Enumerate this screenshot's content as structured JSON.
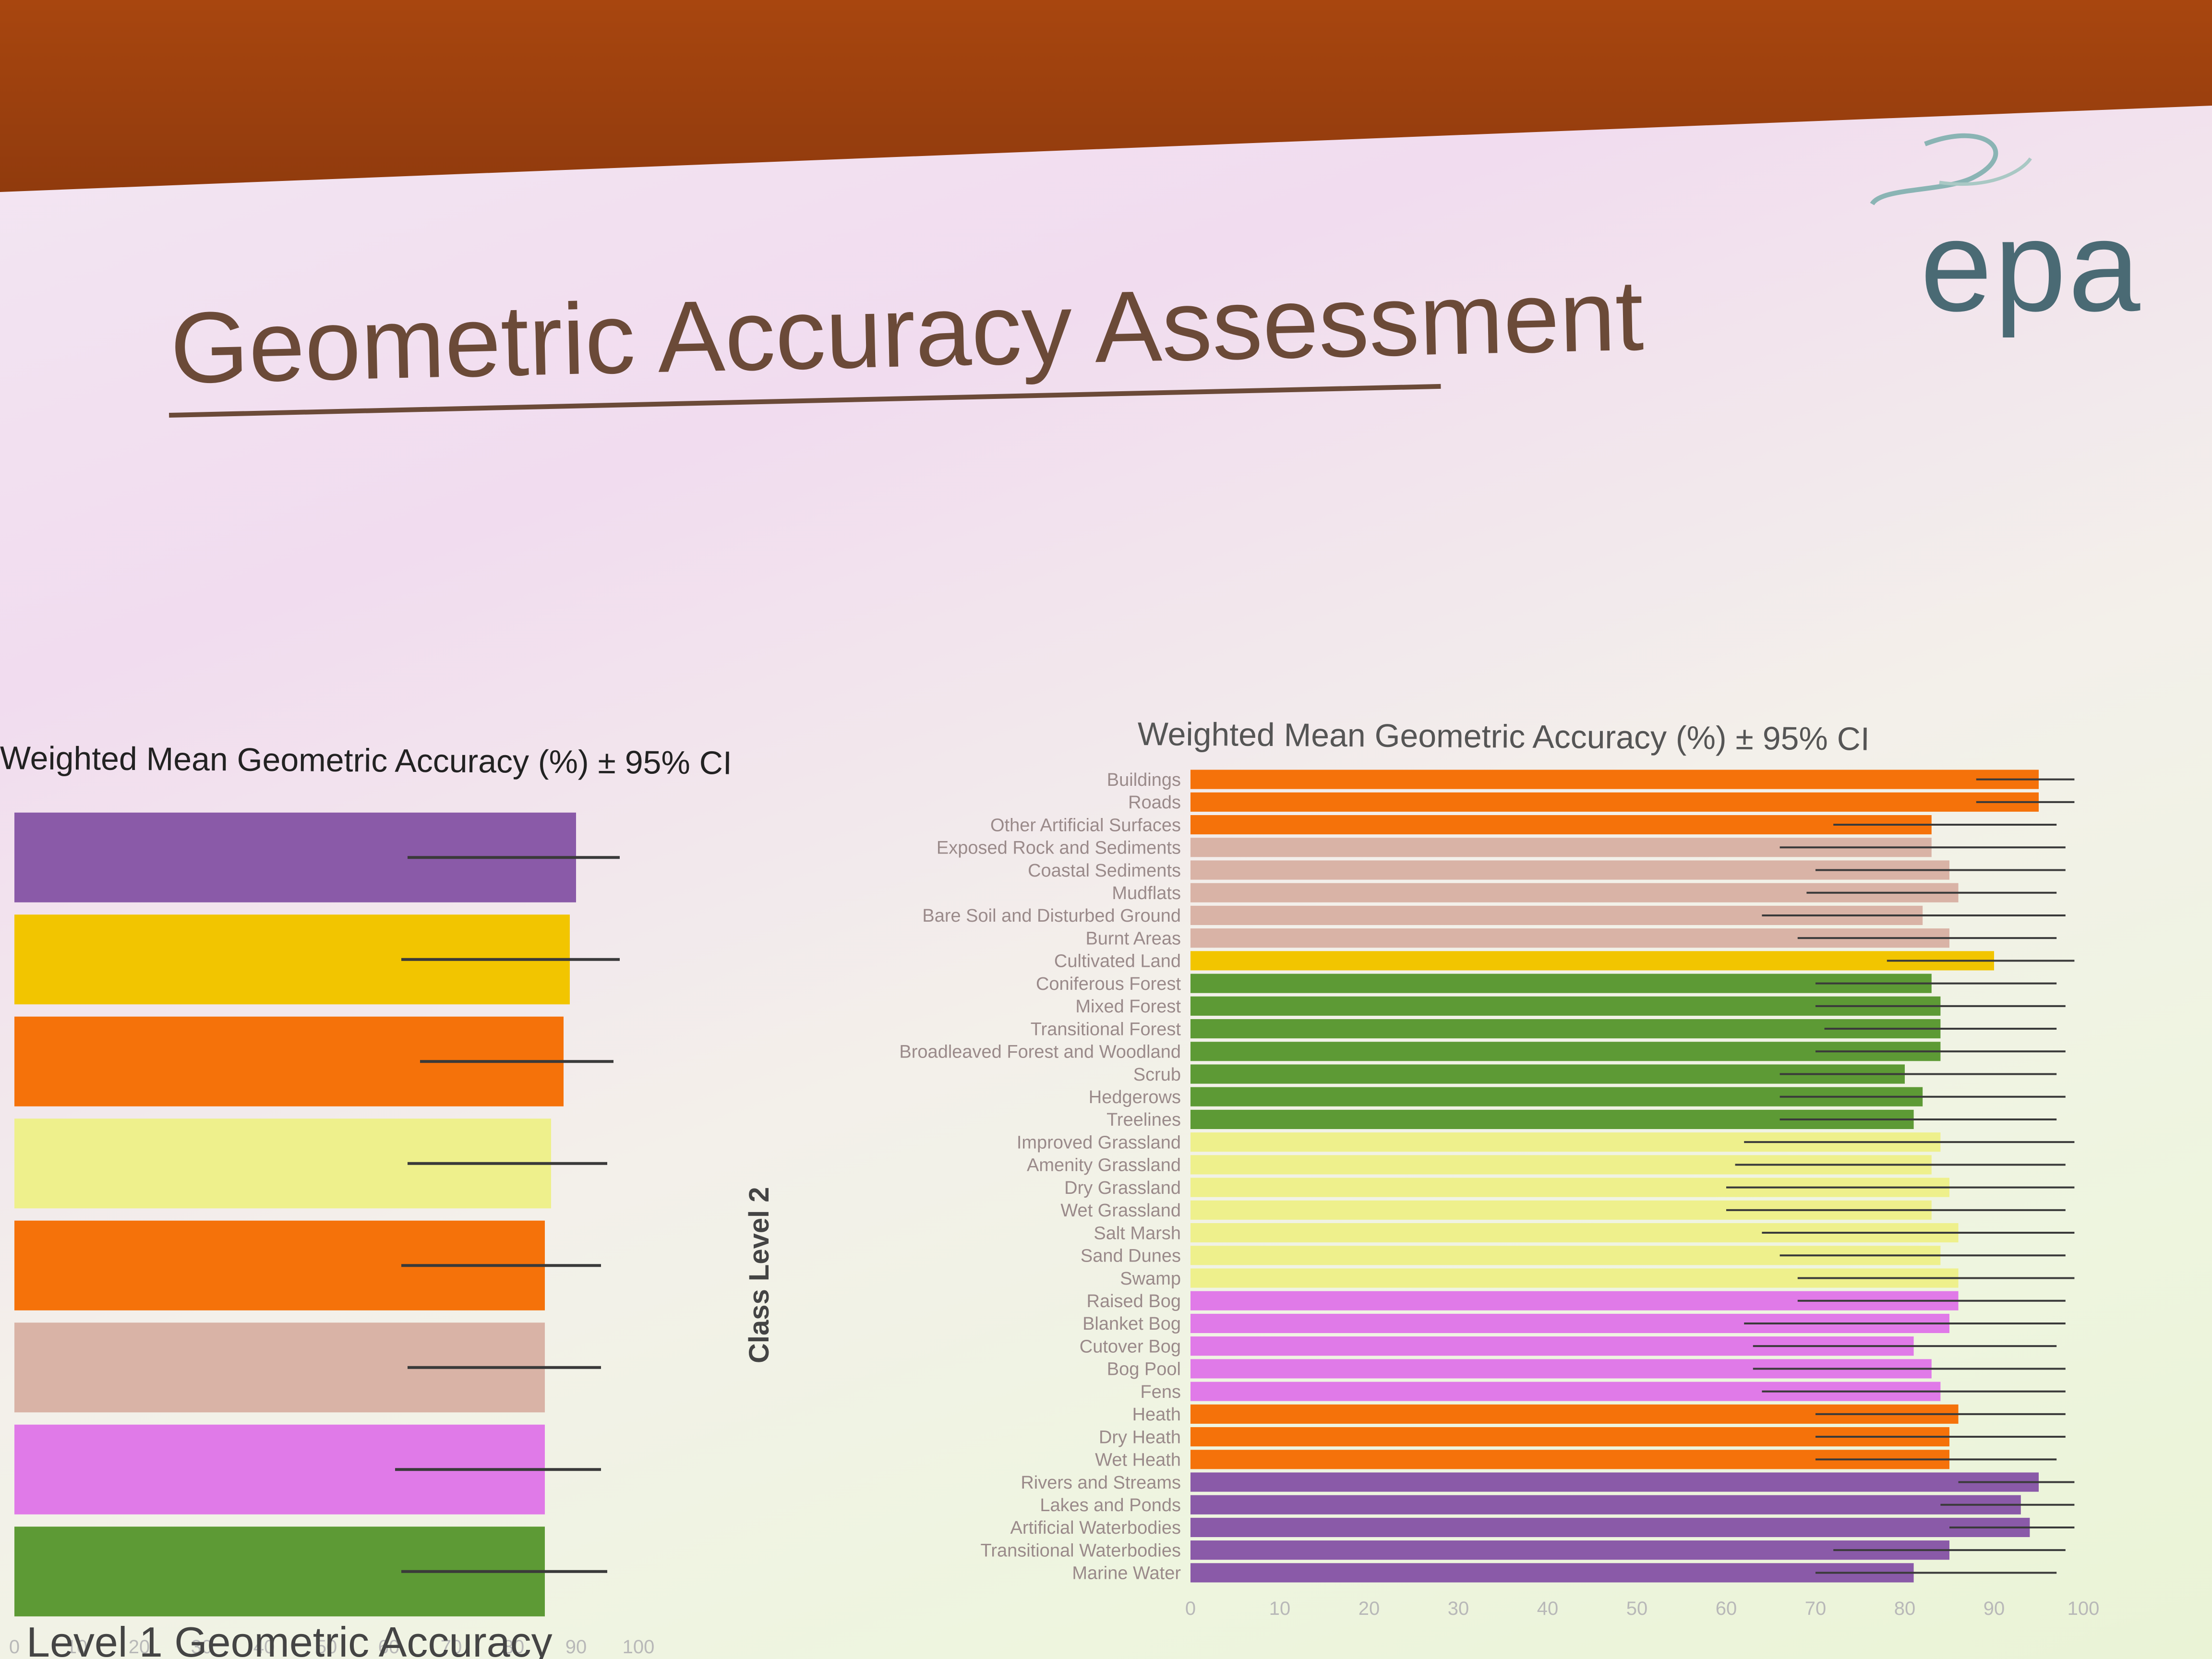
{
  "slide": {
    "title": "Geometric Accuracy Assessment",
    "logo_text": "epa",
    "caption": "Level 1 Geometric Accuracy"
  },
  "chart_data": [
    {
      "type": "bar",
      "orientation": "horizontal",
      "title": "Weighted Mean Geometric Accuracy (%) ± 95% CI",
      "xlim": [
        0,
        100
      ],
      "x_ticks": [
        "0",
        "10",
        "20",
        "30",
        "40",
        "50",
        "60",
        "70",
        "80",
        "90",
        "100"
      ],
      "bars": [
        {
          "value": 90,
          "ci_low": 63,
          "ci_high": 97,
          "color": "#8a5aa8"
        },
        {
          "value": 89,
          "ci_low": 62,
          "ci_high": 97,
          "color": "#f2c500"
        },
        {
          "value": 88,
          "ci_low": 65,
          "ci_high": 96,
          "color": "#f5720a"
        },
        {
          "value": 86,
          "ci_low": 63,
          "ci_high": 95,
          "color": "#eef08c"
        },
        {
          "value": 85,
          "ci_low": 62,
          "ci_high": 94,
          "color": "#f5720a"
        },
        {
          "value": 85,
          "ci_low": 63,
          "ci_high": 94,
          "color": "#d9b3a6"
        },
        {
          "value": 85,
          "ci_low": 61,
          "ci_high": 94,
          "color": "#e07ae8"
        },
        {
          "value": 85,
          "ci_low": 62,
          "ci_high": 95,
          "color": "#5d9a35"
        }
      ]
    },
    {
      "type": "bar",
      "orientation": "horizontal",
      "title": "Weighted Mean Geometric Accuracy (%) ± 95% CI",
      "ylabel": "Class Level 2",
      "xlim": [
        0,
        100
      ],
      "x_ticks": [
        "0",
        "10",
        "20",
        "30",
        "40",
        "50",
        "60",
        "70",
        "80",
        "90",
        "100"
      ],
      "categories": [
        "Buildings",
        "Roads",
        "Other Artificial Surfaces",
        "Exposed Rock and Sediments",
        "Coastal Sediments",
        "Mudflats",
        "Bare Soil and Disturbed Ground",
        "Burnt Areas",
        "Cultivated Land",
        "Coniferous Forest",
        "Mixed Forest",
        "Transitional Forest",
        "Broadleaved Forest and Woodland",
        "Scrub",
        "Hedgerows",
        "Treelines",
        "Improved Grassland",
        "Amenity Grassland",
        "Dry Grassland",
        "Wet Grassland",
        "Salt Marsh",
        "Sand Dunes",
        "Swamp",
        "Raised Bog",
        "Blanket Bog",
        "Cutover Bog",
        "Bog Pool",
        "Fens",
        "Heath",
        "Dry Heath",
        "Wet Heath",
        "Rivers and Streams",
        "Lakes and Ponds",
        "Artificial Waterbodies",
        "Transitional Waterbodies",
        "Marine Water"
      ],
      "bars": [
        {
          "value": 95,
          "ci_low": 88,
          "ci_high": 99,
          "color": "#f5720a"
        },
        {
          "value": 95,
          "ci_low": 88,
          "ci_high": 99,
          "color": "#f5720a"
        },
        {
          "value": 83,
          "ci_low": 72,
          "ci_high": 97,
          "color": "#f5720a"
        },
        {
          "value": 83,
          "ci_low": 66,
          "ci_high": 98,
          "color": "#d9b3a6"
        },
        {
          "value": 85,
          "ci_low": 70,
          "ci_high": 98,
          "color": "#d9b3a6"
        },
        {
          "value": 86,
          "ci_low": 69,
          "ci_high": 97,
          "color": "#d9b3a6"
        },
        {
          "value": 82,
          "ci_low": 64,
          "ci_high": 98,
          "color": "#d9b3a6"
        },
        {
          "value": 85,
          "ci_low": 68,
          "ci_high": 97,
          "color": "#d9b3a6"
        },
        {
          "value": 90,
          "ci_low": 78,
          "ci_high": 99,
          "color": "#f2c500"
        },
        {
          "value": 83,
          "ci_low": 70,
          "ci_high": 97,
          "color": "#5d9a35"
        },
        {
          "value": 84,
          "ci_low": 70,
          "ci_high": 98,
          "color": "#5d9a35"
        },
        {
          "value": 84,
          "ci_low": 71,
          "ci_high": 97,
          "color": "#5d9a35"
        },
        {
          "value": 84,
          "ci_low": 70,
          "ci_high": 98,
          "color": "#5d9a35"
        },
        {
          "value": 80,
          "ci_low": 66,
          "ci_high": 97,
          "color": "#5d9a35"
        },
        {
          "value": 82,
          "ci_low": 66,
          "ci_high": 98,
          "color": "#5d9a35"
        },
        {
          "value": 81,
          "ci_low": 66,
          "ci_high": 97,
          "color": "#5d9a35"
        },
        {
          "value": 84,
          "ci_low": 62,
          "ci_high": 99,
          "color": "#eef08c"
        },
        {
          "value": 83,
          "ci_low": 61,
          "ci_high": 98,
          "color": "#eef08c"
        },
        {
          "value": 85,
          "ci_low": 60,
          "ci_high": 99,
          "color": "#eef08c"
        },
        {
          "value": 83,
          "ci_low": 60,
          "ci_high": 98,
          "color": "#eef08c"
        },
        {
          "value": 86,
          "ci_low": 64,
          "ci_high": 99,
          "color": "#eef08c"
        },
        {
          "value": 84,
          "ci_low": 66,
          "ci_high": 98,
          "color": "#eef08c"
        },
        {
          "value": 86,
          "ci_low": 68,
          "ci_high": 99,
          "color": "#eef08c"
        },
        {
          "value": 86,
          "ci_low": 68,
          "ci_high": 98,
          "color": "#e07ae8"
        },
        {
          "value": 85,
          "ci_low": 62,
          "ci_high": 98,
          "color": "#e07ae8"
        },
        {
          "value": 81,
          "ci_low": 63,
          "ci_high": 97,
          "color": "#e07ae8"
        },
        {
          "value": 83,
          "ci_low": 63,
          "ci_high": 98,
          "color": "#e07ae8"
        },
        {
          "value": 84,
          "ci_low": 64,
          "ci_high": 98,
          "color": "#e07ae8"
        },
        {
          "value": 86,
          "ci_low": 70,
          "ci_high": 98,
          "color": "#f5720a"
        },
        {
          "value": 85,
          "ci_low": 70,
          "ci_high": 98,
          "color": "#f5720a"
        },
        {
          "value": 85,
          "ci_low": 70,
          "ci_high": 97,
          "color": "#f5720a"
        },
        {
          "value": 95,
          "ci_low": 86,
          "ci_high": 99,
          "color": "#8a5aa8"
        },
        {
          "value": 93,
          "ci_low": 84,
          "ci_high": 99,
          "color": "#8a5aa8"
        },
        {
          "value": 94,
          "ci_low": 85,
          "ci_high": 99,
          "color": "#8a5aa8"
        },
        {
          "value": 85,
          "ci_low": 72,
          "ci_high": 98,
          "color": "#8a5aa8"
        },
        {
          "value": 81,
          "ci_low": 70,
          "ci_high": 97,
          "color": "#8a5aa8"
        }
      ]
    }
  ]
}
